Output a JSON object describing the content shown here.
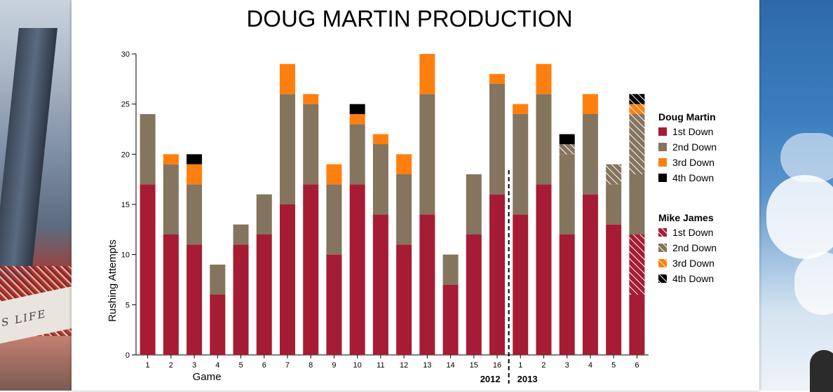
{
  "chart_data": {
    "type": "bar",
    "stacked": true,
    "title": "DOUG MARTIN PRODUCTION",
    "xlabel": "Game",
    "ylabel": "Rushing Attempts",
    "ylim": [
      0,
      30
    ],
    "yticks": [
      0,
      5,
      10,
      15,
      20,
      25,
      30
    ],
    "grid": false,
    "legend_position": "right",
    "categories": [
      "1",
      "2",
      "3",
      "4",
      "5",
      "6",
      "7",
      "8",
      "9",
      "10",
      "11",
      "12",
      "13",
      "14",
      "15",
      "16",
      "1",
      "2",
      "3",
      "4",
      "5",
      "6"
    ],
    "season_labels": [
      {
        "label": "2012",
        "games": 16
      },
      {
        "label": "2013",
        "games": 6
      }
    ],
    "series": [
      {
        "player": "Doug Martin",
        "name": "1st Down",
        "color": "#a61c34",
        "pattern": "solid",
        "values": [
          17,
          12,
          11,
          6,
          11,
          12,
          15,
          17,
          10,
          17,
          14,
          11,
          14,
          7,
          12,
          16,
          14,
          17,
          12,
          16,
          13,
          6
        ]
      },
      {
        "player": "Doug Martin",
        "name": "2nd Down",
        "color": "#85745e",
        "pattern": "solid",
        "values": [
          7,
          7,
          6,
          3,
          2,
          4,
          11,
          8,
          7,
          6,
          7,
          7,
          12,
          3,
          6,
          11,
          10,
          9,
          8,
          8,
          4,
          6
        ]
      },
      {
        "player": "Doug Martin",
        "name": "3rd Down",
        "color": "#ff7f0e",
        "pattern": "solid",
        "values": [
          0,
          1,
          2,
          0,
          0,
          0,
          3,
          1,
          2,
          1,
          1,
          2,
          4,
          0,
          0,
          1,
          1,
          3,
          0,
          2,
          0,
          0
        ]
      },
      {
        "player": "Doug Martin",
        "name": "4th Down",
        "color": "#000000",
        "pattern": "solid",
        "values": [
          0,
          0,
          1,
          0,
          0,
          0,
          0,
          0,
          0,
          1,
          0,
          0,
          0,
          0,
          0,
          0,
          0,
          0,
          1,
          0,
          0,
          0
        ]
      },
      {
        "player": "Mike James",
        "name": "1st Down",
        "color": "#a61c34",
        "pattern": "hatched",
        "values": [
          0,
          0,
          0,
          0,
          0,
          0,
          0,
          0,
          0,
          0,
          0,
          0,
          0,
          0,
          0,
          0,
          0,
          0,
          0,
          0,
          0,
          6
        ]
      },
      {
        "player": "Mike James",
        "name": "2nd Down",
        "color": "#85745e",
        "pattern": "hatched",
        "values": [
          0,
          0,
          0,
          0,
          0,
          0,
          0,
          0,
          0,
          0,
          0,
          0,
          0,
          0,
          0,
          0,
          0,
          0,
          1,
          0,
          2,
          6
        ]
      },
      {
        "player": "Mike James",
        "name": "3rd Down",
        "color": "#ff7f0e",
        "pattern": "hatched",
        "values": [
          0,
          0,
          0,
          0,
          0,
          0,
          0,
          0,
          0,
          0,
          0,
          0,
          0,
          0,
          0,
          0,
          0,
          0,
          0,
          0,
          0,
          1
        ]
      },
      {
        "player": "Mike James",
        "name": "4th Down",
        "color": "#000000",
        "pattern": "hatched",
        "values": [
          0,
          0,
          0,
          0,
          0,
          0,
          0,
          0,
          0,
          0,
          0,
          0,
          0,
          0,
          0,
          0,
          0,
          0,
          0,
          0,
          0,
          1
        ]
      }
    ],
    "stack_order": [
      0,
      4,
      1,
      5,
      2,
      6,
      3,
      7
    ],
    "legend": [
      {
        "title": "Doug Martin",
        "entries": [
          {
            "label": "1st Down",
            "color": "#a61c34",
            "pattern": "solid"
          },
          {
            "label": "2nd Down",
            "color": "#85745e",
            "pattern": "solid"
          },
          {
            "label": "3rd Down",
            "color": "#ff7f0e",
            "pattern": "solid"
          },
          {
            "label": "4th Down",
            "color": "#000000",
            "pattern": "solid"
          }
        ]
      },
      {
        "title": "Mike James",
        "entries": [
          {
            "label": "1st Down",
            "color": "#a61c34",
            "pattern": "hatched"
          },
          {
            "label": "2nd Down",
            "color": "#85745e",
            "pattern": "hatched"
          },
          {
            "label": "3rd Down",
            "color": "#ff7f0e",
            "pattern": "hatched"
          },
          {
            "label": "4th Down",
            "color": "#000000",
            "pattern": "hatched"
          }
        ]
      }
    ]
  }
}
